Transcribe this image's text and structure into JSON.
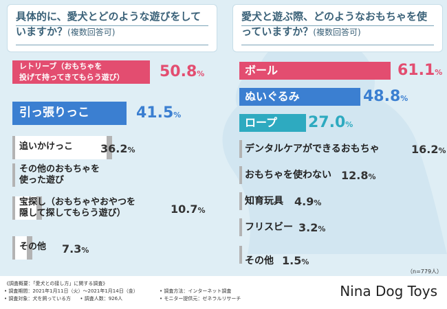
{
  "colors": {
    "gray": "#b3b3b3",
    "red": "#e34d70",
    "blue": "#3b7fd1",
    "teal": "#2eaac0"
  },
  "chart_data": [
    {
      "type": "bar",
      "title": "具体的に、愛犬とどのような遊びをしていますか？",
      "subtitle": "(複数回答可)",
      "categories": [
        "レトリーブ（おもちゃを投げて持ってきてもらう遊び）",
        "引っ張りっこ",
        "追いかけっこ",
        "その他のおもちゃを使った遊び",
        "宝探し（おもちゃやおやつを隠して探してもらう遊び）",
        "その他"
      ],
      "label_lines": [
        [
          "レトリーブ（おもちゃを",
          "投げて持ってきてもらう遊び）"
        ],
        [
          "引っ張りっこ"
        ],
        [
          "追いかけっこ"
        ],
        [
          "その他のおもちゃを",
          "使った遊び"
        ],
        [
          "宝探し（おもちゃやおやつを",
          "隠して探してもらう遊び）"
        ],
        [
          "その他"
        ]
      ],
      "values": [
        50.8,
        41.5,
        36.2,
        null,
        10.7,
        7.3
      ],
      "unit": "%"
    },
    {
      "type": "bar",
      "title": "愛犬と遊ぶ際、どのようなおもちゃを使っていますか？",
      "subtitle": "(複数回答可)",
      "categories": [
        "ボール",
        "ぬいぐるみ",
        "ロープ",
        "デンタルケアができるおもちゃ",
        "おもちゃを使わない",
        "知育玩具",
        "フリスビー",
        "その他"
      ],
      "values": [
        61.1,
        48.8,
        27.0,
        16.2,
        12.8,
        4.9,
        3.2,
        1.5
      ],
      "unit": "%"
    }
  ],
  "footer": {
    "overview": "《調査概要：「愛犬との接し方」に関する調査》",
    "period": "• 調査期間：2021年1月11日（火）～2021年1月14日（金）",
    "target": "• 調査対象：犬を飼っている方",
    "count": "• 調査人数：926人",
    "method": "• 調査方法：インターネット調査",
    "provider": "• モニター提供元：ゼネラルリサーチ",
    "sample": "（n=779人）",
    "brand": "Nina Dog Toys"
  }
}
